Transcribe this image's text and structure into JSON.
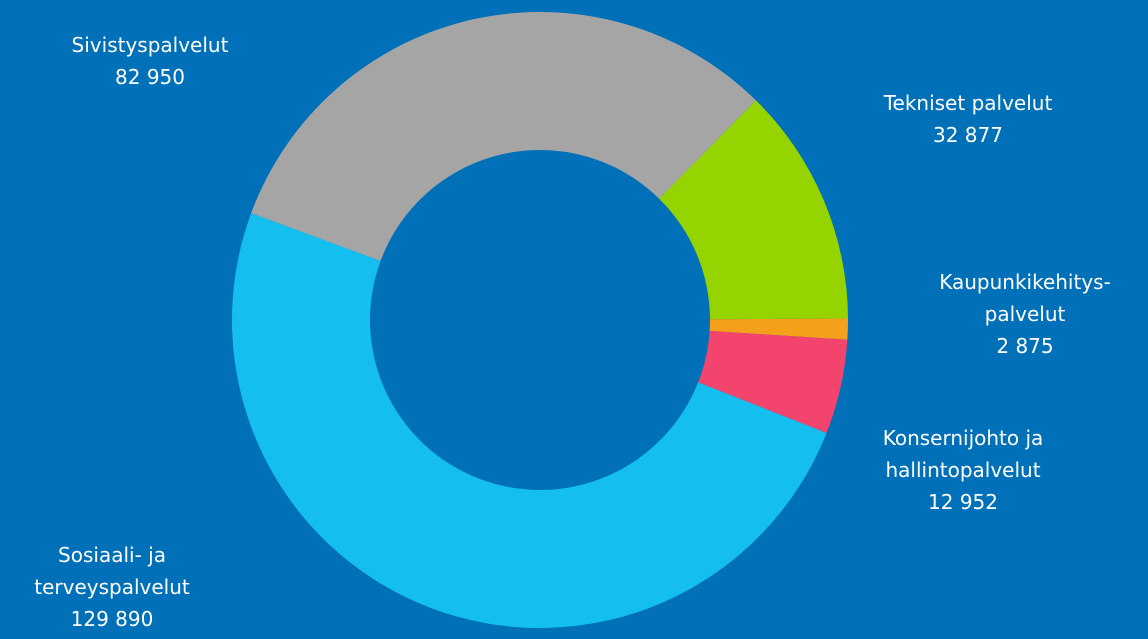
{
  "chart_data": {
    "type": "donut",
    "categories": [
      "Sivistyspalvelut",
      "Tekniset palvelut",
      "Kaupunkikehitys-\npalvelut",
      "Konsernijohto ja\nhallintopalvelut",
      "Sosiaali- ja\nterveyspalvelut"
    ],
    "values": [
      82950,
      32877,
      2875,
      12952,
      129890
    ],
    "value_labels": [
      "82 950",
      "32 877",
      "2 875",
      "12 952",
      "129 890"
    ],
    "colors": [
      "#a5a5a5",
      "#96d400",
      "#f5a01a",
      "#f3446e",
      "#14bfef"
    ]
  }
}
